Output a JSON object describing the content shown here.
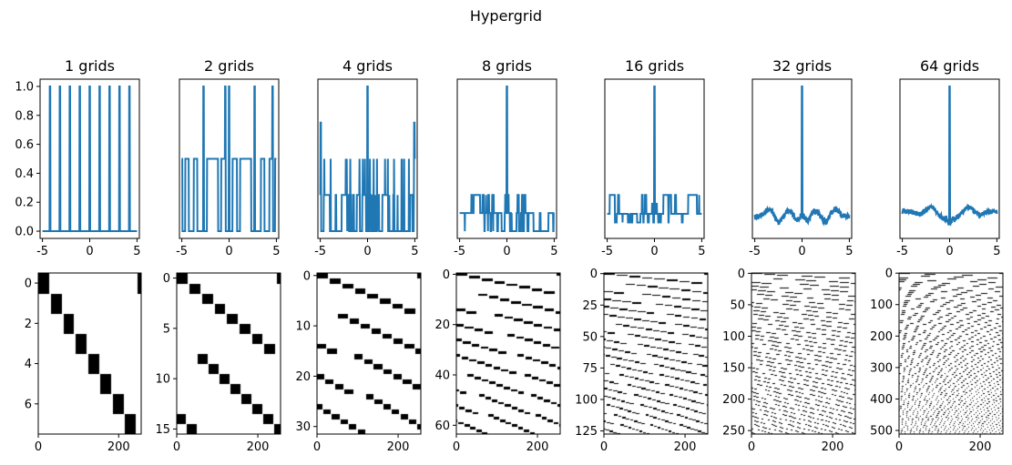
{
  "title": "Hypergrid",
  "colors": {
    "line": "#1f77b4",
    "raster": "#000000",
    "background": "#ffffff",
    "frame": "#000000"
  },
  "chart_data": [
    {
      "type": "line",
      "title": "1 grids",
      "grids": 1,
      "xlim": [
        -5.25,
        5.25
      ],
      "ylim": [
        -0.05,
        1.05
      ],
      "xticks": [
        "-5",
        "0",
        "5"
      ],
      "yticks": [
        "0.0",
        "0.2",
        "0.4",
        "0.6",
        "0.8",
        "1.0"
      ],
      "baseline": 0.0,
      "peak_x": [
        -4.2,
        -3.15,
        -2.1,
        -1.05,
        0,
        1.05,
        2.1,
        3.15,
        4.2
      ],
      "peak_height": 1.0
    },
    {
      "type": "line",
      "title": "2 grids",
      "grids": 2,
      "xlim": [
        -5.25,
        5.25
      ],
      "ylim": [
        -0.05,
        1.05
      ],
      "xticks": [
        "-5",
        "0",
        "5"
      ],
      "yticks": [],
      "baseline": 0.0,
      "level": 0.5,
      "peak_x": [
        -2.7,
        -0.4,
        0,
        2.7,
        4.6
      ],
      "peak_height": 1.0
    },
    {
      "type": "line",
      "title": "4 grids",
      "grids": 4,
      "xlim": [
        -5.25,
        5.25
      ],
      "ylim": [
        -0.05,
        1.05
      ],
      "xticks": [
        "-5",
        "0",
        "5"
      ],
      "yticks": [],
      "baseline": 0.0,
      "level": 0.25,
      "peak_x": [
        0
      ],
      "peak_height": 1.0,
      "edge_value": 0.75
    },
    {
      "type": "line",
      "title": "8 grids",
      "grids": 8,
      "xlim": [
        -5.25,
        5.25
      ],
      "ylim": [
        -0.05,
        1.05
      ],
      "xticks": [
        "-5",
        "0",
        "5"
      ],
      "yticks": [],
      "baseline": 0.0,
      "level": 0.125,
      "peak_x": [
        0
      ],
      "peak_height": 1.0
    },
    {
      "type": "line",
      "title": "16 grids",
      "grids": 16,
      "xlim": [
        -5.25,
        5.25
      ],
      "ylim": [
        -0.05,
        1.05
      ],
      "xticks": [
        "-5",
        "0",
        "5"
      ],
      "yticks": [],
      "baseline": 0.06,
      "level": 0.12,
      "peak_x": [
        0
      ],
      "peak_height": 1.0
    },
    {
      "type": "line",
      "title": "32 grids",
      "grids": 32,
      "xlim": [
        -5.25,
        5.25
      ],
      "ylim": [
        -0.05,
        1.05
      ],
      "xticks": [
        "-5",
        "0",
        "5"
      ],
      "yticks": [],
      "baseline": 0.06,
      "level": 0.11,
      "peak_x": [
        0
      ],
      "peak_height": 1.0
    },
    {
      "type": "line",
      "title": "64 grids",
      "grids": 64,
      "xlim": [
        -5.25,
        5.25
      ],
      "ylim": [
        -0.05,
        1.05
      ],
      "xticks": [
        "-5",
        "0",
        "5"
      ],
      "yticks": [],
      "baseline": 0.0,
      "level": 0.1,
      "peak_x": [
        0
      ],
      "peak_height": 1.0
    },
    {
      "type": "heatmap",
      "grids": 1,
      "rows": 8,
      "cols": 256,
      "xlim": [
        0,
        256
      ],
      "ylim": [
        7.5,
        -0.5
      ],
      "xticks": [
        {
          "v": 0,
          "label": "0"
        },
        {
          "v": 200,
          "label": "200"
        }
      ],
      "yticks": [
        {
          "v": 0,
          "label": "0"
        },
        {
          "v": 2,
          "label": "2"
        },
        {
          "v": 4,
          "label": "4"
        },
        {
          "v": 6,
          "label": "6"
        }
      ]
    },
    {
      "type": "heatmap",
      "grids": 2,
      "rows": 16,
      "cols": 256,
      "xlim": [
        0,
        256
      ],
      "ylim": [
        15.5,
        -0.5
      ],
      "xticks": [
        {
          "v": 0,
          "label": "0"
        },
        {
          "v": 200,
          "label": "200"
        }
      ],
      "yticks": [
        {
          "v": 0,
          "label": "0"
        },
        {
          "v": 5,
          "label": "5"
        },
        {
          "v": 10,
          "label": "10"
        },
        {
          "v": 15,
          "label": "15"
        }
      ]
    },
    {
      "type": "heatmap",
      "grids": 4,
      "rows": 32,
      "cols": 256,
      "xlim": [
        0,
        256
      ],
      "ylim": [
        31.5,
        -0.5
      ],
      "xticks": [
        {
          "v": 0,
          "label": "0"
        },
        {
          "v": 200,
          "label": "200"
        }
      ],
      "yticks": [
        {
          "v": 0,
          "label": "0"
        },
        {
          "v": 10,
          "label": "10"
        },
        {
          "v": 20,
          "label": "20"
        },
        {
          "v": 30,
          "label": "30"
        }
      ]
    },
    {
      "type": "heatmap",
      "grids": 8,
      "rows": 64,
      "cols": 256,
      "xlim": [
        0,
        256
      ],
      "ylim": [
        63.5,
        -0.5
      ],
      "xticks": [
        {
          "v": 0,
          "label": "0"
        },
        {
          "v": 200,
          "label": "200"
        }
      ],
      "yticks": [
        {
          "v": 0,
          "label": "0"
        },
        {
          "v": 20,
          "label": "20"
        },
        {
          "v": 40,
          "label": "40"
        },
        {
          "v": 60,
          "label": "60"
        }
      ]
    },
    {
      "type": "heatmap",
      "grids": 16,
      "rows": 128,
      "cols": 256,
      "xlim": [
        0,
        256
      ],
      "ylim": [
        127.5,
        -0.5
      ],
      "xticks": [
        {
          "v": 0,
          "label": "0"
        },
        {
          "v": 200,
          "label": "200"
        }
      ],
      "yticks": [
        {
          "v": 0,
          "label": "0"
        },
        {
          "v": 25,
          "label": "25"
        },
        {
          "v": 50,
          "label": "50"
        },
        {
          "v": 75,
          "label": "75"
        },
        {
          "v": 100,
          "label": "100"
        },
        {
          "v": 125,
          "label": "125"
        }
      ]
    },
    {
      "type": "heatmap",
      "grids": 32,
      "rows": 256,
      "cols": 256,
      "xlim": [
        0,
        256
      ],
      "ylim": [
        255.5,
        -0.5
      ],
      "xticks": [
        {
          "v": 0,
          "label": "0"
        },
        {
          "v": 200,
          "label": "200"
        }
      ],
      "yticks": [
        {
          "v": 0,
          "label": "0"
        },
        {
          "v": 50,
          "label": "50"
        },
        {
          "v": 100,
          "label": "100"
        },
        {
          "v": 150,
          "label": "150"
        },
        {
          "v": 200,
          "label": "200"
        },
        {
          "v": 250,
          "label": "250"
        }
      ]
    },
    {
      "type": "heatmap",
      "grids": 64,
      "rows": 512,
      "cols": 256,
      "xlim": [
        0,
        256
      ],
      "ylim": [
        511.5,
        -0.5
      ],
      "xticks": [
        {
          "v": 0,
          "label": "0"
        },
        {
          "v": 200,
          "label": "200"
        }
      ],
      "yticks": [
        {
          "v": 0,
          "label": "0"
        },
        {
          "v": 100,
          "label": "100"
        },
        {
          "v": 200,
          "label": "200"
        },
        {
          "v": 300,
          "label": "300"
        },
        {
          "v": 400,
          "label": "400"
        },
        {
          "v": 500,
          "label": "500"
        }
      ]
    }
  ]
}
